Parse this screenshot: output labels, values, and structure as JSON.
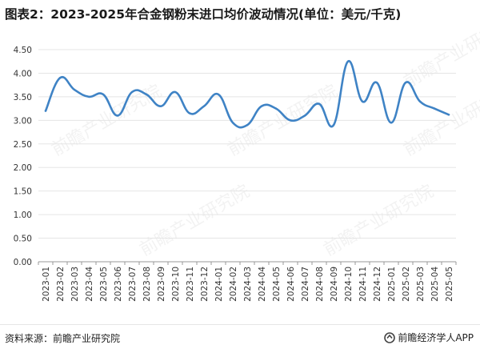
{
  "title": "图表2：2023-2025年合金钢粉末进口均价波动情况(单位：美元/千克)",
  "source": "资料来源：前瞻产业研究院",
  "brand": {
    "name": "前瞻经济学人APP",
    "icon": "brand-logo-icon"
  },
  "watermark": "前瞻产业研究院",
  "colors": {
    "line": "#3f83c5",
    "axis": "#999999",
    "grid": "#e5e5e5",
    "text": "#333333"
  },
  "chart_data": {
    "type": "line",
    "categories": [
      "2023-01",
      "2023-02",
      "2023-03",
      "2023-04",
      "2023-05",
      "2023-06",
      "2023-07",
      "2023-08",
      "2023-09",
      "2023-10",
      "2023-11",
      "2023-12",
      "2024-01",
      "2024-02",
      "2024-03",
      "2024-04",
      "2024-05",
      "2024-06",
      "2024-07",
      "2024-08",
      "2024-09",
      "2024-10",
      "2024-11",
      "2024-12",
      "2025-01",
      "2025-02",
      "2025-03",
      "2025-04",
      "2025-05"
    ],
    "values": [
      3.2,
      3.9,
      3.65,
      3.5,
      3.55,
      3.1,
      3.6,
      3.55,
      3.3,
      3.6,
      3.15,
      3.3,
      3.55,
      2.95,
      2.9,
      3.3,
      3.25,
      3.0,
      3.1,
      3.35,
      2.9,
      4.25,
      3.4,
      3.8,
      2.95,
      3.8,
      3.4,
      3.25,
      3.12
    ],
    "ylim": [
      0,
      4.5
    ],
    "yticks": [
      "0.00",
      "0.50",
      "1.00",
      "1.50",
      "2.00",
      "2.50",
      "3.00",
      "3.50",
      "4.00",
      "4.50"
    ],
    "grid": true,
    "legend": "none"
  }
}
